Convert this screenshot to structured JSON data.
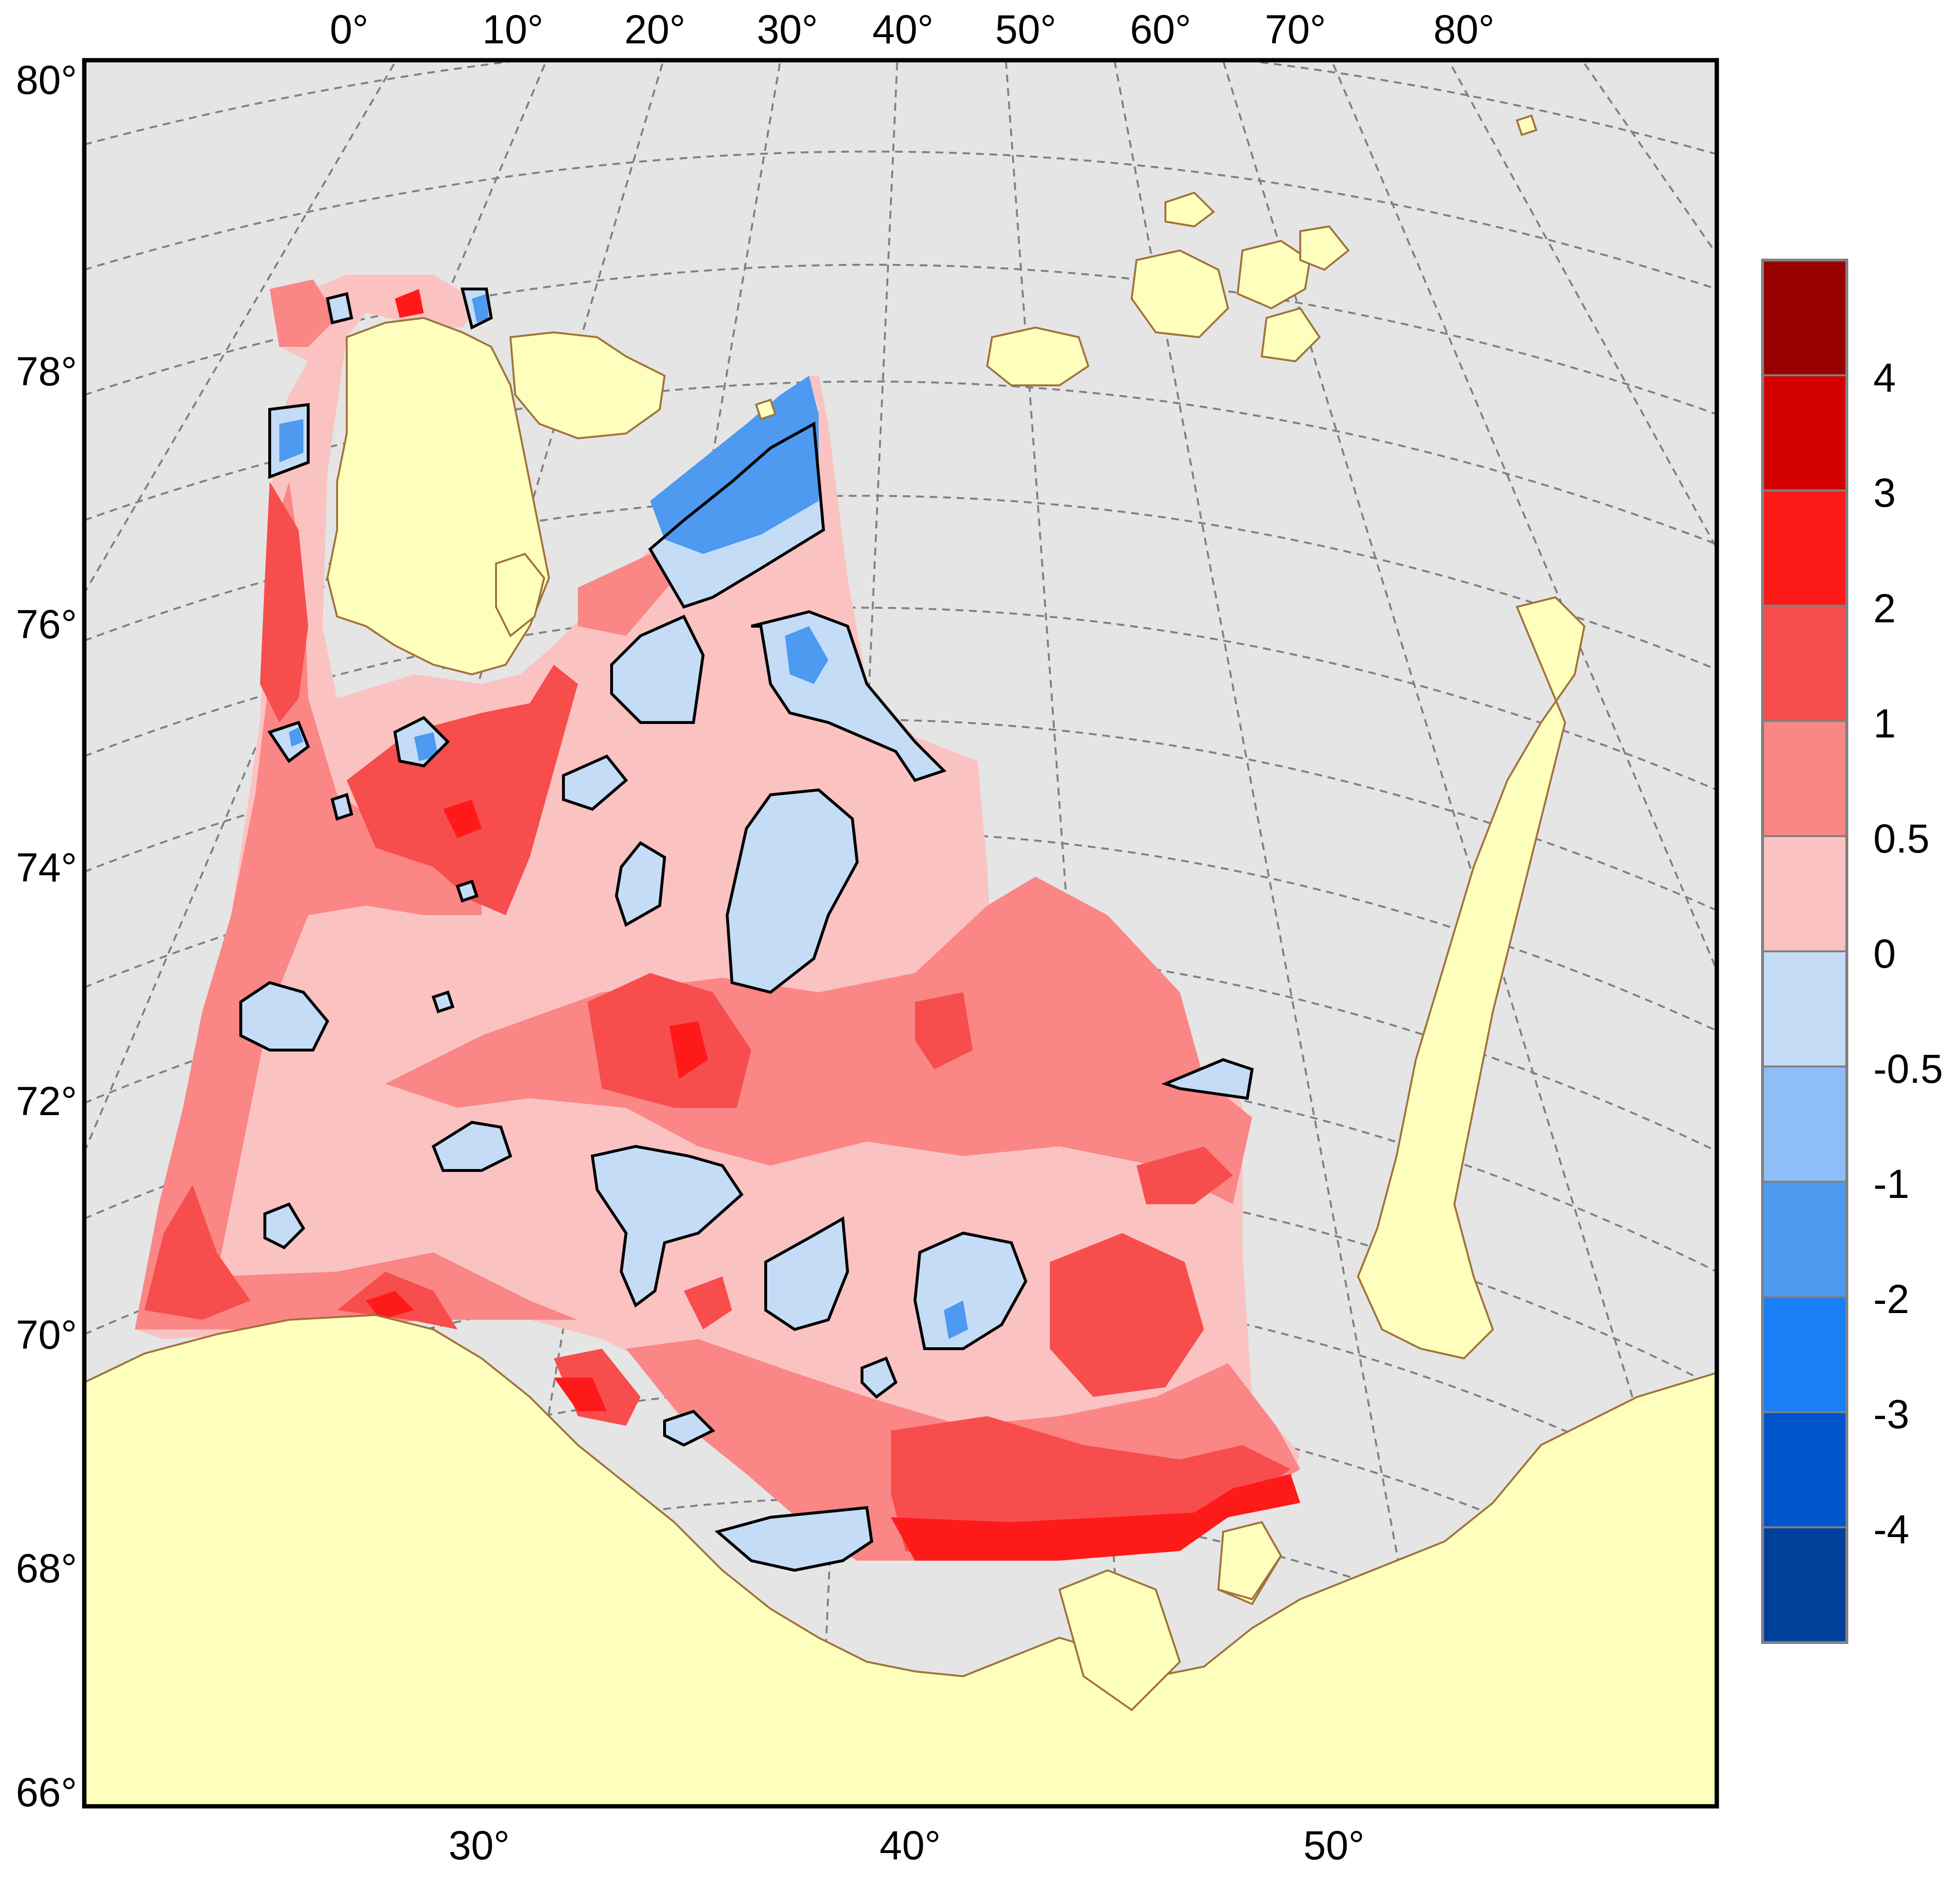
{
  "map": {
    "top_longitude_labels": [
      "0°",
      "10°",
      "20°",
      "30°",
      "40°",
      "50°",
      "60°",
      "70°",
      "80°"
    ],
    "bottom_longitude_labels": [
      "30°",
      "40°",
      "50°"
    ],
    "latitude_labels": [
      "80°",
      "78°",
      "76°",
      "74°",
      "72°",
      "70°",
      "68°",
      "66°"
    ],
    "colors": {
      "ocean": "#e5e5e5",
      "land": "#ffffbd",
      "coastline": "#a0733c",
      "graticule": "#808080",
      "zero_contour": "#000000"
    }
  },
  "legend": {
    "labels": [
      "4",
      "3",
      "2",
      "1",
      "0.5",
      "0",
      "-0.5",
      "-1",
      "-2",
      "-3",
      "-4"
    ],
    "colors": [
      "#990000",
      "#d40000",
      "#ff1a1a",
      "#f74d4d",
      "#fa8686",
      "#fbc2c2",
      "#c5dcf7",
      "#8fbdf7",
      "#4d9af0",
      "#1a7ef7",
      "#0055cc",
      "#00409a"
    ]
  }
}
